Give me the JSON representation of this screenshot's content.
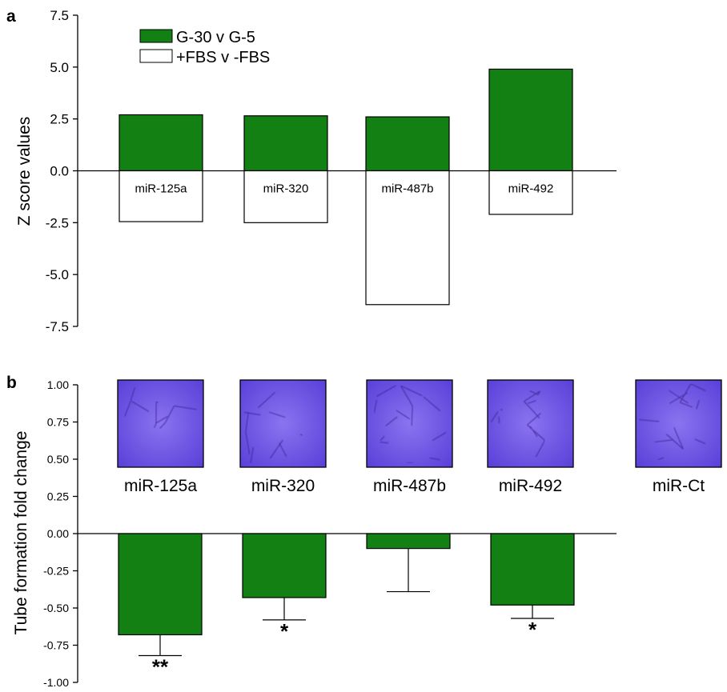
{
  "chart_data": [
    {
      "panel": "a",
      "type": "bar",
      "ylabel": "Z score values",
      "ylim": [
        -7.5,
        7.5
      ],
      "yticks": [
        "7.5",
        "5.0",
        "2.5",
        "0.0",
        "-2.5",
        "-5.0",
        "-7.5"
      ],
      "ytick_values": [
        7.5,
        5.0,
        2.5,
        0.0,
        -2.5,
        -5.0,
        -7.5
      ],
      "categories": [
        "miR-125a",
        "miR-320",
        "miR-487b",
        "miR-492"
      ],
      "series": [
        {
          "name": "G-30 v G-5",
          "color": "#138013",
          "values": [
            2.7,
            2.65,
            2.6,
            4.9
          ]
        },
        {
          "name": "+FBS v -FBS",
          "color": "#ffffff",
          "values": [
            -2.45,
            -2.5,
            -6.45,
            -2.1
          ]
        }
      ],
      "legend_position": "top-left",
      "grid": false
    },
    {
      "panel": "b",
      "type": "bar",
      "ylabel": "Tube formation fold change",
      "ylim": [
        -1.0,
        1.0
      ],
      "yticks": [
        "1.00",
        "0.75",
        "0.50",
        "0.25",
        "0.00",
        "-0.25",
        "-0.50",
        "-0.75",
        "-1.00"
      ],
      "ytick_values": [
        1.0,
        0.75,
        0.5,
        0.25,
        0.0,
        -0.25,
        -0.5,
        -0.75,
        -1.0
      ],
      "bar_color": "#138013",
      "categories": [
        "miR-125a",
        "miR-320",
        "miR-487b",
        "miR-492"
      ],
      "values": [
        -0.68,
        -0.43,
        -0.1,
        -0.48
      ],
      "error": [
        0.14,
        0.15,
        0.29,
        0.09
      ],
      "significance": [
        "**",
        "*",
        "",
        "*"
      ],
      "image_labels": [
        "miR-125a",
        "miR-320",
        "miR-487b",
        "miR-492",
        "miR-Ct"
      ],
      "grid": false
    }
  ],
  "panel_letters": {
    "a": "a",
    "b": "b"
  }
}
